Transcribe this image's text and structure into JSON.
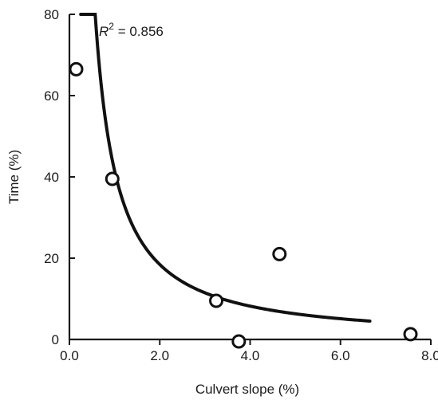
{
  "chart_data": {
    "type": "scatter",
    "title": "",
    "xlabel": "Culvert slope (%)",
    "ylabel": "Time (%)",
    "xlim": [
      0,
      8
    ],
    "ylim": [
      0,
      80
    ],
    "x_ticks": [
      0,
      2,
      4,
      6,
      8
    ],
    "x_tick_labels": [
      "0.0",
      "2.0",
      "4.0",
      "6.0",
      "8.0"
    ],
    "y_ticks": [
      0,
      20,
      40,
      60,
      80
    ],
    "y_tick_labels": [
      "0",
      "20",
      "40",
      "60",
      "80"
    ],
    "grid": false,
    "points": [
      {
        "x": 0.15,
        "y": 66.5
      },
      {
        "x": 0.95,
        "y": 39.5
      },
      {
        "x": 3.25,
        "y": 9.5
      },
      {
        "x": 3.75,
        "y": -0.5
      },
      {
        "x": 4.65,
        "y": 21
      },
      {
        "x": 7.55,
        "y": 1.3
      }
    ],
    "fit": {
      "model": "power",
      "equation_form": "y = a * x^b",
      "a": 41.5,
      "b": -1.17,
      "x_range": [
        0.25,
        6.65
      ]
    },
    "annotation": {
      "r_symbol": "R",
      "r_exponent": "2",
      "r_value_text": " = 0.856"
    }
  }
}
